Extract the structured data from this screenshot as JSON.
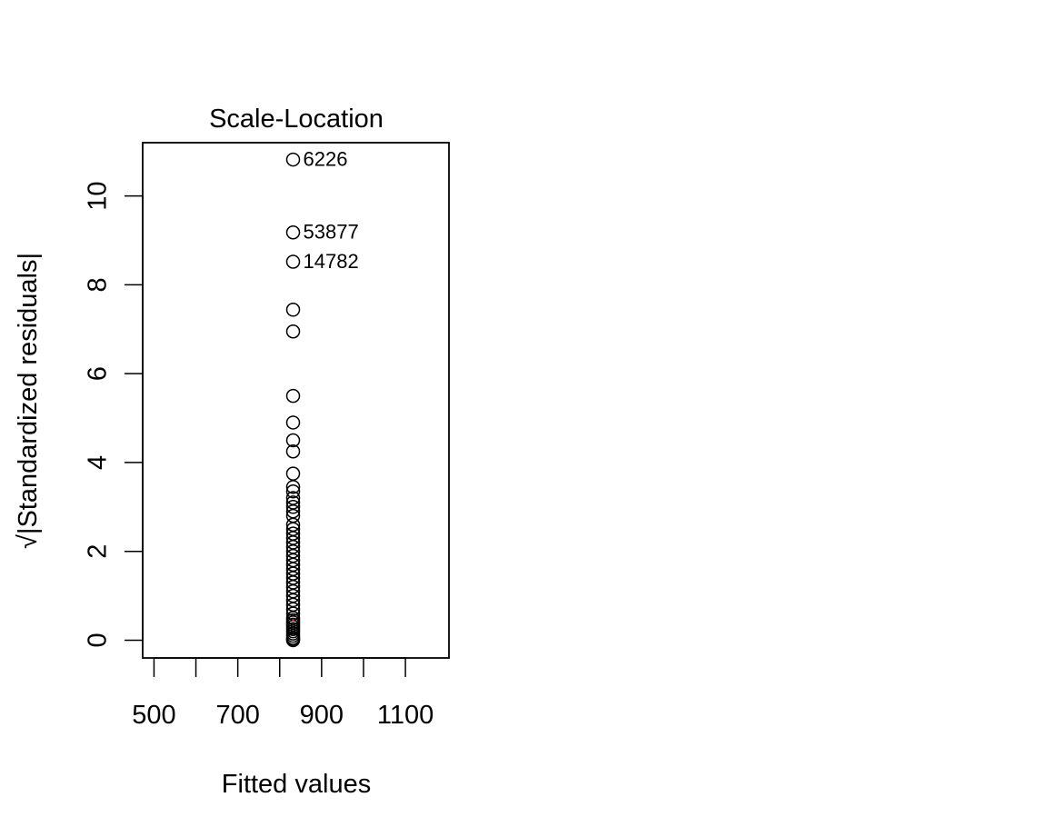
{
  "chart_data": {
    "type": "scatter",
    "title": "Scale-Location",
    "xlabel": "Fitted values",
    "ylabel": "√|Standardized residuals|",
    "xlim": [
      473,
      1204
    ],
    "ylim": [
      -0.4,
      11.2
    ],
    "x_ticks": [
      500,
      600,
      700,
      800,
      900,
      1000,
      1100
    ],
    "x_tick_labels": [
      "500",
      "",
      "700",
      "",
      "900",
      "",
      "1100"
    ],
    "y_ticks": [
      0,
      2,
      4,
      6,
      8,
      10
    ],
    "y_tick_labels": [
      "0",
      "2",
      "4",
      "6",
      "8",
      "10"
    ],
    "grid": false,
    "series": [
      {
        "x": [
          832,
          832,
          832,
          832,
          832,
          832,
          832,
          832,
          832,
          832,
          832,
          832,
          832,
          832,
          832,
          832,
          832,
          832,
          832,
          832,
          832,
          832,
          832,
          832,
          832,
          832,
          832,
          832,
          832,
          832,
          832,
          832,
          832,
          832,
          832,
          832,
          832,
          832,
          832,
          832,
          832,
          832,
          832,
          832,
          832,
          832,
          832,
          832,
          832,
          832
        ],
        "y": [
          10.82,
          9.18,
          8.52,
          7.44,
          6.95,
          5.5,
          4.9,
          4.5,
          4.25,
          3.75,
          3.45,
          3.35,
          3.2,
          3.1,
          3.0,
          2.9,
          2.8,
          2.6,
          2.5,
          2.4,
          2.3,
          2.2,
          2.1,
          2.0,
          1.9,
          1.8,
          1.7,
          1.6,
          1.5,
          1.4,
          1.3,
          1.2,
          1.1,
          1.0,
          0.9,
          0.8,
          0.7,
          0.6,
          0.5,
          0.45,
          0.4,
          0.35,
          0.3,
          0.25,
          0.2,
          0.15,
          0.1,
          0.05,
          0.02,
          0.0
        ]
      }
    ],
    "labels": [
      {
        "text": "6226",
        "x": 832,
        "y": 10.82
      },
      {
        "text": "53877",
        "x": 832,
        "y": 9.18
      },
      {
        "text": "14782",
        "x": 832,
        "y": 8.52
      }
    ],
    "smoother_color": "#ff0000"
  }
}
